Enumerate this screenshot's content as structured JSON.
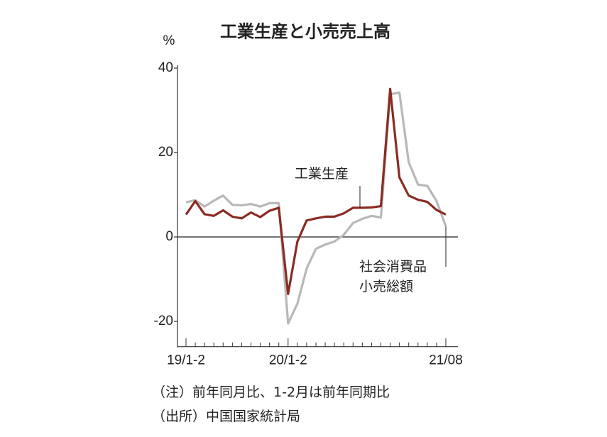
{
  "chart_data": {
    "type": "line",
    "title": "工業生産と小売売上高",
    "y_unit": "%",
    "categories": [
      "19/1-2",
      null,
      null,
      null,
      null,
      null,
      null,
      null,
      null,
      null,
      null,
      "20/1-2",
      null,
      null,
      null,
      null,
      null,
      null,
      null,
      null,
      null,
      null,
      null,
      null,
      null,
      null,
      null,
      null,
      "21/08"
    ],
    "series": [
      {
        "name": "工業生産",
        "color": "#8b2b22",
        "values": [
          5.3,
          8.5,
          5.4,
          5.0,
          6.3,
          4.8,
          4.4,
          5.8,
          4.7,
          6.2,
          6.9,
          -13.5,
          -1.1,
          3.9,
          4.4,
          4.8,
          4.8,
          5.6,
          6.9,
          6.9,
          7.0,
          7.3,
          35.1,
          14.1,
          9.8,
          8.8,
          8.3,
          6.4,
          5.3
        ]
      },
      {
        "name": "社会消費品小売総額",
        "color": "#b8b8b8",
        "values": [
          8.2,
          8.7,
          7.2,
          8.6,
          9.8,
          7.6,
          7.5,
          7.8,
          7.2,
          8.0,
          8.0,
          -20.5,
          -15.8,
          -7.5,
          -2.8,
          -1.8,
          -1.1,
          0.5,
          3.3,
          4.3,
          5.0,
          4.6,
          33.8,
          34.2,
          17.7,
          12.4,
          12.1,
          8.5,
          2.5
        ]
      }
    ],
    "ylim": [
      -26,
      40
    ],
    "yticks": [
      -20,
      0,
      20,
      40
    ],
    "notes": [
      "（注）前年同月比、1-2月は前年同期比",
      "（出所）中国国家統計局"
    ]
  }
}
